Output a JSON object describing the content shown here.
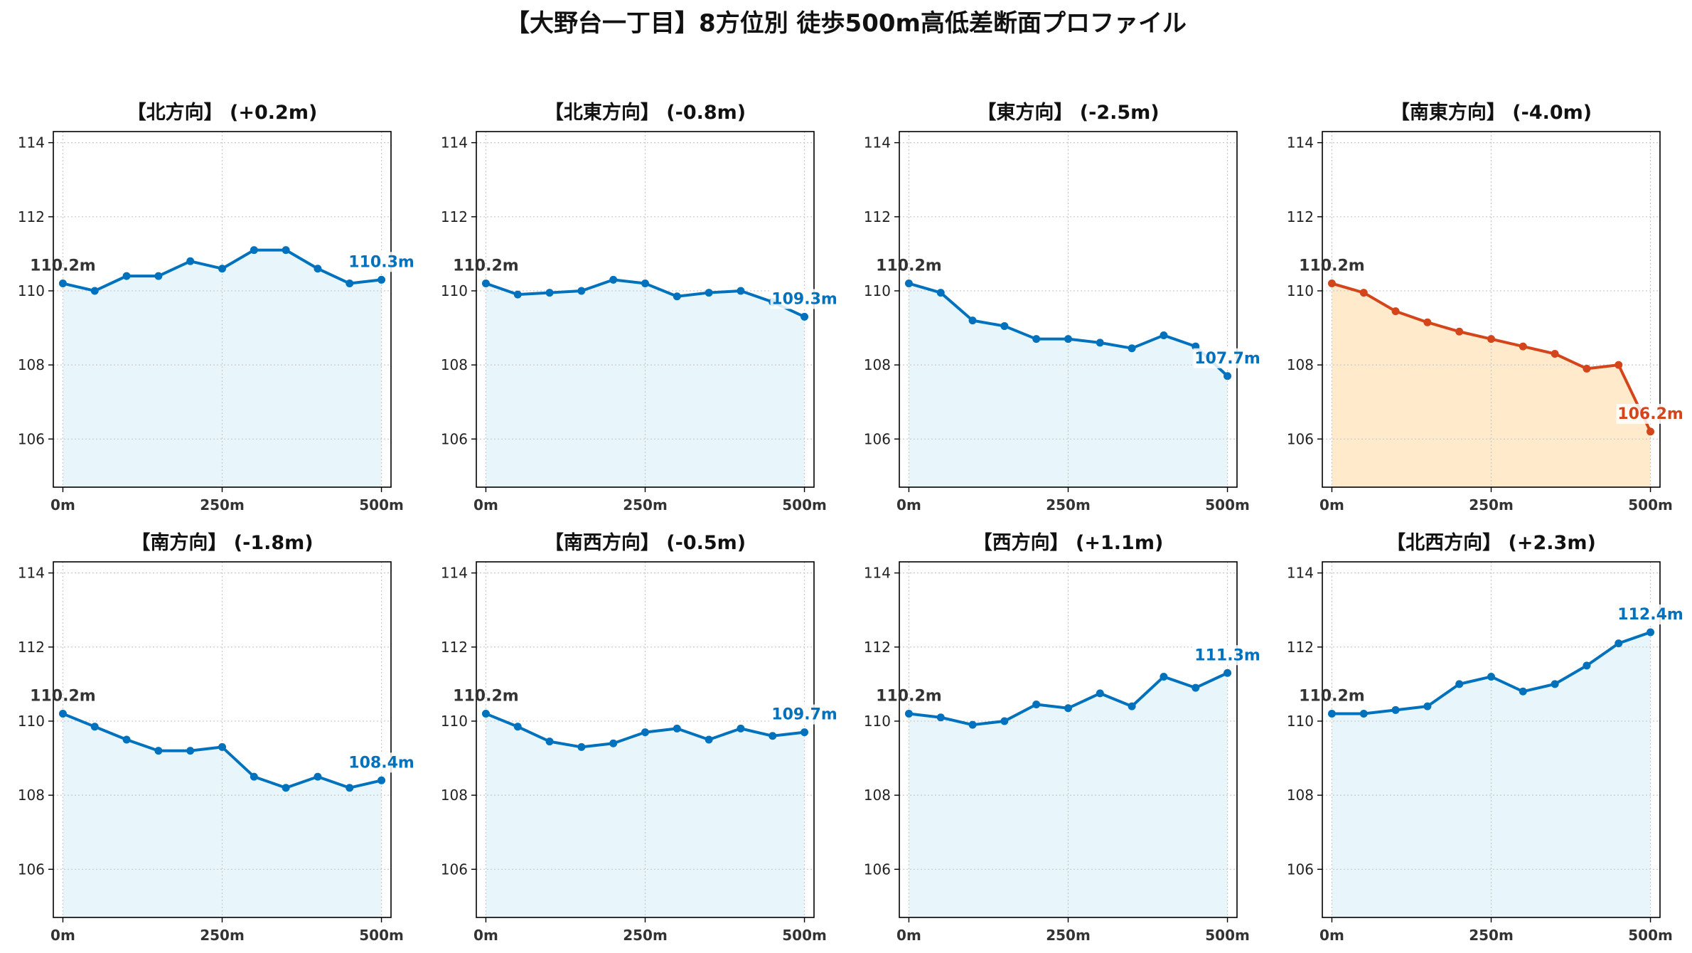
{
  "title": "【大野台一丁目】8方位別 徒歩500m高低差断面プロファイル",
  "colors": {
    "normal_line": "#0072BD",
    "normal_fill": "#E8F6FC",
    "highlight_line": "#D4451B",
    "highlight_fill": "#FFEACB",
    "start_label": "#333333",
    "grid": "#c8c8c8"
  },
  "chart_data": [
    {
      "type": "area",
      "title": "【北方向】 (+0.2m)",
      "highlight": false,
      "x": [
        0,
        50,
        100,
        150,
        200,
        250,
        300,
        350,
        400,
        450,
        500
      ],
      "y": [
        110.2,
        110.0,
        110.4,
        110.4,
        110.8,
        110.6,
        111.1,
        111.1,
        110.6,
        110.2,
        110.3
      ],
      "start_label": "110.2m",
      "end_label": "110.3m",
      "xticks": [
        "0m",
        "250m",
        "500m"
      ],
      "yticks": [
        106,
        108,
        110,
        112,
        114
      ],
      "ylim": [
        104.7,
        114.3
      ],
      "xlim": [
        -15,
        515
      ],
      "grid": true
    },
    {
      "type": "area",
      "title": "【北東方向】 (-0.8m)",
      "highlight": false,
      "x": [
        0,
        50,
        100,
        150,
        200,
        250,
        300,
        350,
        400,
        450,
        500
      ],
      "y": [
        110.2,
        109.9,
        109.95,
        110.0,
        110.3,
        110.2,
        109.85,
        109.95,
        110.0,
        109.7,
        109.3
      ],
      "start_label": "110.2m",
      "end_label": "109.3m",
      "xticks": [
        "0m",
        "250m",
        "500m"
      ],
      "yticks": [
        106,
        108,
        110,
        112,
        114
      ],
      "ylim": [
        104.7,
        114.3
      ],
      "xlim": [
        -15,
        515
      ],
      "grid": true
    },
    {
      "type": "area",
      "title": "【東方向】 (-2.5m)",
      "highlight": false,
      "x": [
        0,
        50,
        100,
        150,
        200,
        250,
        300,
        350,
        400,
        450,
        500
      ],
      "y": [
        110.2,
        109.95,
        109.2,
        109.05,
        108.7,
        108.7,
        108.6,
        108.45,
        108.8,
        108.5,
        107.7
      ],
      "start_label": "110.2m",
      "end_label": "107.7m",
      "xticks": [
        "0m",
        "250m",
        "500m"
      ],
      "yticks": [
        106,
        108,
        110,
        112,
        114
      ],
      "ylim": [
        104.7,
        114.3
      ],
      "xlim": [
        -15,
        515
      ],
      "grid": true
    },
    {
      "type": "area",
      "title": "【南東方向】 (-4.0m)",
      "highlight": true,
      "x": [
        0,
        50,
        100,
        150,
        200,
        250,
        300,
        350,
        400,
        450,
        500
      ],
      "y": [
        110.2,
        109.95,
        109.45,
        109.15,
        108.9,
        108.7,
        108.5,
        108.3,
        107.9,
        108.0,
        106.2
      ],
      "start_label": "110.2m",
      "end_label": "106.2m",
      "xticks": [
        "0m",
        "250m",
        "500m"
      ],
      "yticks": [
        106,
        108,
        110,
        112,
        114
      ],
      "ylim": [
        104.7,
        114.3
      ],
      "xlim": [
        -15,
        515
      ],
      "grid": true
    },
    {
      "type": "area",
      "title": "【南方向】 (-1.8m)",
      "highlight": false,
      "x": [
        0,
        50,
        100,
        150,
        200,
        250,
        300,
        350,
        400,
        450,
        500
      ],
      "y": [
        110.2,
        109.85,
        109.5,
        109.2,
        109.2,
        109.3,
        108.5,
        108.2,
        108.5,
        108.2,
        108.4
      ],
      "start_label": "110.2m",
      "end_label": "108.4m",
      "xticks": [
        "0m",
        "250m",
        "500m"
      ],
      "yticks": [
        106,
        108,
        110,
        112,
        114
      ],
      "ylim": [
        104.7,
        114.3
      ],
      "xlim": [
        -15,
        515
      ],
      "grid": true
    },
    {
      "type": "area",
      "title": "【南西方向】 (-0.5m)",
      "highlight": false,
      "x": [
        0,
        50,
        100,
        150,
        200,
        250,
        300,
        350,
        400,
        450,
        500
      ],
      "y": [
        110.2,
        109.85,
        109.45,
        109.3,
        109.4,
        109.7,
        109.8,
        109.5,
        109.8,
        109.6,
        109.7
      ],
      "start_label": "110.2m",
      "end_label": "109.7m",
      "xticks": [
        "0m",
        "250m",
        "500m"
      ],
      "yticks": [
        106,
        108,
        110,
        112,
        114
      ],
      "ylim": [
        104.7,
        114.3
      ],
      "xlim": [
        -15,
        515
      ],
      "grid": true
    },
    {
      "type": "area",
      "title": "【西方向】 (+1.1m)",
      "highlight": false,
      "x": [
        0,
        50,
        100,
        150,
        200,
        250,
        300,
        350,
        400,
        450,
        500
      ],
      "y": [
        110.2,
        110.1,
        109.9,
        110.0,
        110.45,
        110.35,
        110.75,
        110.4,
        111.2,
        110.9,
        111.3
      ],
      "start_label": "110.2m",
      "end_label": "111.3m",
      "xticks": [
        "0m",
        "250m",
        "500m"
      ],
      "yticks": [
        106,
        108,
        110,
        112,
        114
      ],
      "ylim": [
        104.7,
        114.3
      ],
      "xlim": [
        -15,
        515
      ],
      "grid": true
    },
    {
      "type": "area",
      "title": "【北西方向】 (+2.3m)",
      "highlight": false,
      "x": [
        0,
        50,
        100,
        150,
        200,
        250,
        300,
        350,
        400,
        450,
        500
      ],
      "y": [
        110.2,
        110.2,
        110.3,
        110.4,
        111.0,
        111.2,
        110.8,
        111.0,
        111.5,
        112.1,
        112.4
      ],
      "start_label": "110.2m",
      "end_label": "112.4m",
      "xticks": [
        "0m",
        "250m",
        "500m"
      ],
      "yticks": [
        106,
        108,
        110,
        112,
        114
      ],
      "ylim": [
        104.7,
        114.3
      ],
      "xlim": [
        -15,
        515
      ],
      "grid": true
    }
  ]
}
